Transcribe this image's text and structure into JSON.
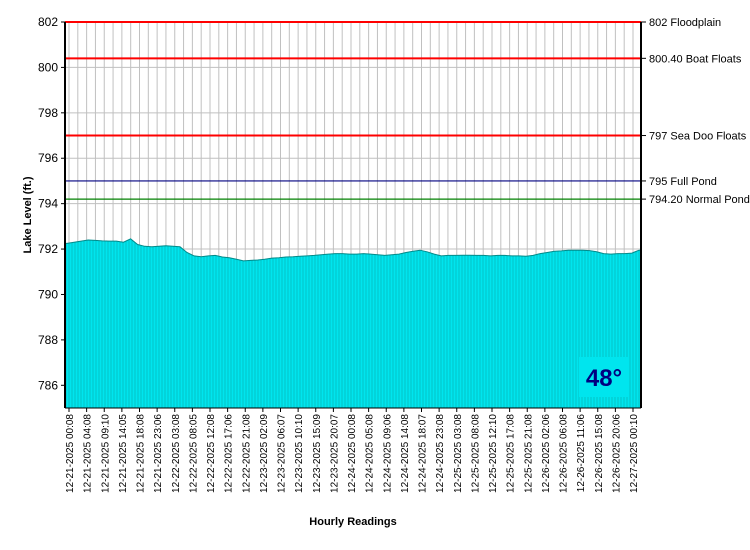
{
  "chart_data": {
    "type": "area",
    "xlabel": "Hourly Readings",
    "ylabel": "Lake Level (ft.)",
    "ylim": [
      785,
      802
    ],
    "yticks": [
      786,
      788,
      790,
      792,
      794,
      796,
      798,
      800,
      802
    ],
    "grid": true,
    "fill_color": "#00E5EE",
    "x_tick_labels": [
      "12-21-2025 00:08",
      "12-21-2025 04:08",
      "12-21-2025 09:10",
      "12-21-2025 14:05",
      "12-21-2025 18:08",
      "12-21-2025 23:06",
      "12-22-2025 03:08",
      "12-22-2025 08:05",
      "12-22-2025 12:08",
      "12-22-2025 17:06",
      "12-22-2025 21:08",
      "12-23-2025 02:09",
      "12-23-2025 06:07",
      "12-23-2025 10:10",
      "12-23-2025 15:09",
      "12-23-2025 20:07",
      "12-24-2025 00:08",
      "12-24-2025 05:08",
      "12-24-2025 09:06",
      "12-24-2025 14:08",
      "12-24-2025 18:07",
      "12-24-2025 23:08",
      "12-25-2025 03:08",
      "12-25-2025 08:08",
      "12-25-2025 12:10",
      "12-25-2025 17:08",
      "12-25-2025 21:08",
      "12-26-2025 02:06",
      "12-26-2025 06:08",
      "12-26-2025 11:06",
      "12-26-2025 15:08",
      "12-26-2025 20:06",
      "12-27-2025 00:10"
    ],
    "levels": [
      792.25,
      792.3,
      792.35,
      792.4,
      792.38,
      792.36,
      792.35,
      792.35,
      792.3,
      792.45,
      792.2,
      792.12,
      792.1,
      792.12,
      792.15,
      792.12,
      792.1,
      791.85,
      791.7,
      791.66,
      791.7,
      791.72,
      791.65,
      791.62,
      791.55,
      791.48,
      791.5,
      791.52,
      791.55,
      791.6,
      791.62,
      791.65,
      791.66,
      791.68,
      791.7,
      791.72,
      791.75,
      791.78,
      791.8,
      791.8,
      791.78,
      791.78,
      791.8,
      791.78,
      791.75,
      791.72,
      791.75,
      791.78,
      791.85,
      791.9,
      791.95,
      791.88,
      791.78,
      791.7,
      791.72,
      791.72,
      791.73,
      791.73,
      791.72,
      791.72,
      791.7,
      791.72,
      791.72,
      791.7,
      791.7,
      791.68,
      791.72,
      791.8,
      791.85,
      791.9,
      791.92,
      791.95,
      791.95,
      791.95,
      791.93,
      791.88,
      791.8,
      791.78,
      791.8,
      791.8,
      791.82,
      791.95
    ],
    "reference_lines": [
      {
        "label": "802 Floodplain",
        "value": 802,
        "color": "#FF0000"
      },
      {
        "label": "800.40 Boat Floats",
        "value": 800.4,
        "color": "#FF0000"
      },
      {
        "label": "797 Sea Doo Floats",
        "value": 797,
        "color": "#FF0000"
      },
      {
        "label": "795 Full Pond",
        "value": 795,
        "color": "#000080"
      },
      {
        "label": "794.20 Normal Pond",
        "value": 794.2,
        "color": "#008000"
      }
    ],
    "temperature_badge": "48°"
  }
}
